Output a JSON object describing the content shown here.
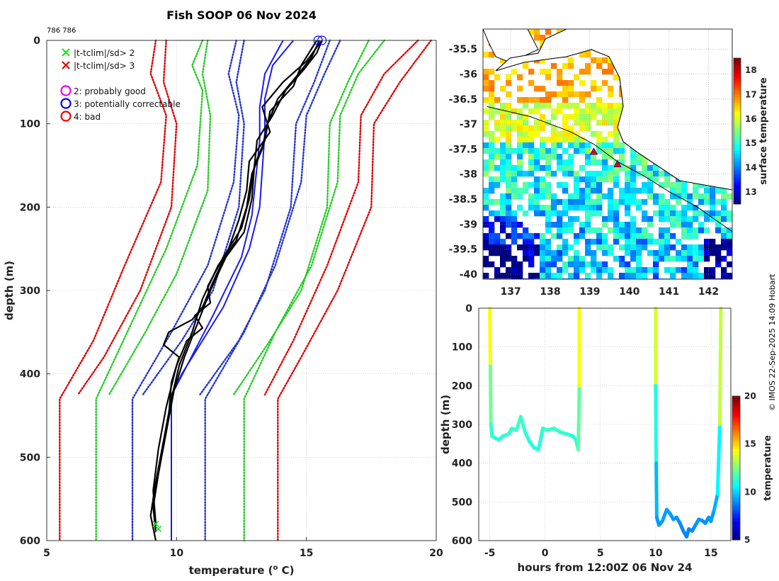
{
  "title": "Fish SOOP 06 Nov 2024",
  "id_label": "786 786",
  "credit": "© IMOS 22-Sep-2025 14:09 Hobart",
  "chart_data": [
    {
      "type": "line",
      "name": "profile",
      "xlabel": "temperature (",
      "xlabel_sup": "o",
      "xlabel_tail": " C)",
      "ylabel": "depth (m)",
      "xlim": [
        5,
        20
      ],
      "ylim": [
        0,
        600
      ],
      "xticks": [
        "5",
        "10",
        "15",
        "20"
      ],
      "yticks": [
        "0",
        "100",
        "200",
        "300",
        "400",
        "500",
        "600"
      ],
      "legend": {
        "markers": [
          {
            "label": "|t-tclim|/sd> 2",
            "color": "#22dd22",
            "symbol": "x"
          },
          {
            "label": "|t-tclim|/sd> 3",
            "color": "#ee0000",
            "symbol": "x"
          }
        ],
        "flags": [
          {
            "label": "2: probably good",
            "color": "#ee00ee"
          },
          {
            "label": "3: potentially correctable",
            "color": "#0000ee"
          },
          {
            "label": "4: bad",
            "color": "#ee0000"
          }
        ]
      },
      "envelopes": [
        {
          "name": "red-left",
          "color": "#dd0000",
          "dotted": true,
          "depth": [
            0,
            40,
            90,
            170,
            270,
            360,
            430,
            600
          ],
          "temp": [
            9.2,
            9.0,
            9.6,
            9.4,
            8.0,
            6.8,
            5.5,
            5.5
          ]
        },
        {
          "name": "red-left-2",
          "color": "#dd0000",
          "dotted": true,
          "depth": [
            0,
            50,
            100,
            200,
            300,
            380,
            425
          ],
          "temp": [
            9.6,
            9.5,
            10.0,
            9.8,
            8.6,
            7.2,
            6.2
          ]
        },
        {
          "name": "green-left",
          "color": "#22cc22",
          "dotted": true,
          "depth": [
            0,
            30,
            60,
            150,
            250,
            330,
            430,
            600
          ],
          "temp": [
            11.0,
            10.6,
            11.0,
            10.8,
            9.6,
            8.4,
            6.9,
            6.9
          ]
        },
        {
          "name": "green-left-2",
          "color": "#22cc22",
          "dotted": true,
          "depth": [
            0,
            40,
            90,
            180,
            280,
            350,
            425
          ],
          "temp": [
            11.2,
            11.0,
            11.3,
            11.2,
            10.0,
            8.8,
            7.4
          ]
        },
        {
          "name": "blue-left",
          "color": "#2233cc",
          "dotted": true,
          "depth": [
            0,
            40,
            90,
            170,
            270,
            350,
            430,
            600
          ],
          "temp": [
            12.3,
            12.0,
            12.4,
            12.2,
            11.2,
            9.8,
            8.3,
            8.3
          ]
        },
        {
          "name": "blue-left-2",
          "color": "#2233cc",
          "dotted": true,
          "depth": [
            0,
            50,
            100,
            200,
            300,
            360,
            425
          ],
          "temp": [
            12.6,
            12.3,
            12.6,
            12.4,
            11.4,
            10.2,
            8.7
          ]
        },
        {
          "name": "blue-right",
          "color": "#2233cc",
          "dotted": true,
          "depth": [
            0,
            40,
            90,
            170,
            270,
            350,
            430,
            600
          ],
          "temp": [
            16.3,
            15.7,
            15.0,
            14.8,
            13.8,
            12.6,
            11.1,
            11.1
          ]
        },
        {
          "name": "blue-right-2",
          "color": "#2233cc",
          "dotted": true,
          "depth": [
            0,
            50,
            100,
            200,
            300,
            360,
            425
          ],
          "temp": [
            15.9,
            15.3,
            14.6,
            14.4,
            13.4,
            12.4,
            10.9
          ]
        },
        {
          "name": "green-right",
          "color": "#22cc22",
          "dotted": true,
          "depth": [
            0,
            40,
            90,
            170,
            270,
            350,
            430,
            600
          ],
          "temp": [
            18.0,
            17.0,
            16.3,
            16.2,
            15.2,
            13.8,
            12.6,
            12.6
          ]
        },
        {
          "name": "green-right-2",
          "color": "#22cc22",
          "dotted": true,
          "depth": [
            0,
            50,
            100,
            200,
            300,
            360,
            425
          ],
          "temp": [
            17.4,
            16.6,
            15.9,
            15.8,
            14.8,
            13.6,
            12.2
          ]
        },
        {
          "name": "red-right",
          "color": "#dd0000",
          "dotted": true,
          "depth": [
            0,
            50,
            100,
            200,
            300,
            380,
            430,
            600
          ],
          "temp": [
            19.8,
            18.6,
            17.6,
            17.5,
            16.2,
            14.8,
            13.9,
            13.9
          ]
        },
        {
          "name": "red-right-2",
          "color": "#dd0000",
          "dotted": true,
          "depth": [
            0,
            40,
            90,
            170,
            270,
            360,
            425
          ],
          "temp": [
            19.3,
            18.0,
            17.1,
            17.0,
            15.8,
            14.5,
            13.4
          ]
        }
      ],
      "series": [
        {
          "name": "climatology-1",
          "color": "#1a1aee",
          "width": 2,
          "depth": [
            0,
            30,
            70,
            110,
            200,
            250,
            320,
            400,
            425,
            600
          ],
          "temp": [
            14.5,
            13.7,
            13.4,
            13.4,
            13.2,
            12.8,
            11.8,
            10.2,
            9.8,
            9.8
          ]
        },
        {
          "name": "climatology-2",
          "color": "#1a1aee",
          "width": 2,
          "depth": [
            0,
            40,
            80,
            120,
            210,
            260,
            330,
            420
          ],
          "temp": [
            14.1,
            13.4,
            13.2,
            13.2,
            12.9,
            12.5,
            11.4,
            9.9
          ]
        },
        {
          "name": "profile-1",
          "color": "#000000",
          "width": 2.2,
          "depth": [
            0,
            15,
            35,
            60,
            90,
            120,
            150,
            190,
            230,
            260,
            300,
            340,
            380,
            420,
            470,
            520,
            560,
            590
          ],
          "temp": [
            15.6,
            15.4,
            14.9,
            14.2,
            13.7,
            13.1,
            13.0,
            12.9,
            12.6,
            11.9,
            11.3,
            10.8,
            10.3,
            9.9,
            9.6,
            9.3,
            9.1,
            9.2
          ]
        },
        {
          "name": "profile-2",
          "color": "#000000",
          "width": 2.2,
          "depth": [
            0,
            20,
            40,
            70,
            100,
            130,
            160,
            200,
            240,
            270,
            310,
            350,
            390,
            430,
            480,
            530,
            570,
            600
          ],
          "temp": [
            15.5,
            15.2,
            14.7,
            13.9,
            13.5,
            13.3,
            12.9,
            12.7,
            12.3,
            11.6,
            11.0,
            10.6,
            10.1,
            9.8,
            9.5,
            9.2,
            9.0,
            9.2
          ]
        },
        {
          "name": "profile-3",
          "color": "#000000",
          "width": 2.2,
          "depth": [
            0,
            25,
            50,
            80,
            110,
            145,
            180,
            215,
            250,
            290,
            320,
            335,
            350,
            365,
            380,
            410,
            450,
            500,
            550,
            585
          ],
          "temp": [
            15.6,
            15.0,
            14.1,
            13.3,
            13.6,
            12.8,
            12.7,
            12.4,
            12.0,
            11.4,
            11.0,
            10.6,
            9.7,
            9.5,
            10.1,
            9.8,
            9.7,
            9.4,
            9.1,
            9.2
          ]
        },
        {
          "name": "profile-4",
          "color": "#000000",
          "width": 2.2,
          "depth": [
            0,
            30,
            55,
            85,
            120,
            150,
            190,
            225,
            260,
            295,
            315,
            330,
            345,
            360,
            390,
            440,
            490,
            540,
            580
          ],
          "temp": [
            15.4,
            14.8,
            14.5,
            13.6,
            13.4,
            13.0,
            12.8,
            12.5,
            11.8,
            11.2,
            11.3,
            10.7,
            11.0,
            10.4,
            10.0,
            9.6,
            9.3,
            9.1,
            9.2
          ]
        }
      ],
      "flag_markers": [
        {
          "type": "circle",
          "color": "#0000ee",
          "temp": 15.45,
          "depth": 0
        },
        {
          "type": "circle",
          "color": "#0000ee",
          "temp": 15.6,
          "depth": 0
        },
        {
          "type": "x",
          "color": "#22dd22",
          "temp": 9.2,
          "depth": 580
        },
        {
          "type": "x",
          "color": "#22dd22",
          "temp": 9.3,
          "depth": 586
        }
      ]
    },
    {
      "type": "heatmap",
      "name": "sst-map",
      "colorbar_label": "surface temperature",
      "xlim": [
        136.3,
        142.6
      ],
      "ylim": [
        -40.1,
        -35.1
      ],
      "xticks": [
        "137",
        "138",
        "139",
        "140",
        "141",
        "142"
      ],
      "yticks": [
        "-35.5",
        "-36",
        "-36.5",
        "-37",
        "-37.5",
        "-38",
        "-38.5",
        "-39",
        "-39.5",
        "-40"
      ],
      "color_range": [
        12.5,
        18.5
      ],
      "colorbar_ticks": [
        "13",
        "14",
        "15",
        "16",
        "17",
        "18"
      ],
      "track": {
        "lon": [
          136.4,
          137.5,
          138.5,
          139.1,
          139.7,
          140.4,
          141.0,
          141.7,
          142.6
        ],
        "lat": [
          -36.65,
          -36.85,
          -37.15,
          -37.4,
          -37.75,
          -38.05,
          -38.35,
          -38.65,
          -39.15
        ]
      },
      "drops": [
        {
          "lon": 139.1,
          "lat": -37.55
        },
        {
          "lon": 139.7,
          "lat": -37.8
        }
      ]
    },
    {
      "type": "scatter",
      "name": "time-depth",
      "xlabel": "hours from 12:00Z 06 Nov 24",
      "ylabel": "depth (m)",
      "colorbar_label": "temperature",
      "xlim": [
        -6,
        16.8
      ],
      "ylim": [
        0,
        600
      ],
      "xticks": [
        "-5",
        "0",
        "5",
        "10",
        "15"
      ],
      "yticks": [
        "0",
        "100",
        "200",
        "300",
        "400",
        "500",
        "600"
      ],
      "color_range": [
        5,
        20
      ],
      "colorbar_ticks": [
        "5",
        "10",
        "15",
        "20"
      ],
      "series": [
        {
          "name": "segment-1",
          "hours": [
            -5.0,
            -4.95,
            -4.9,
            -4.8,
            -4.5,
            -4.2,
            -3.8,
            -3.3,
            -3.0,
            -2.6,
            -2.2,
            -1.8,
            -1.4,
            -1.0,
            -0.6,
            -0.2,
            0.2,
            0.8,
            1.4,
            2.0,
            2.5,
            2.8,
            3.0,
            3.1,
            3.1
          ],
          "depth": [
            0,
            150,
            300,
            330,
            335,
            340,
            330,
            325,
            310,
            315,
            280,
            320,
            345,
            360,
            365,
            310,
            315,
            310,
            320,
            325,
            330,
            340,
            365,
            200,
            0
          ],
          "temp": [
            15.5,
            13,
            11.5,
            11.2,
            11.2,
            11.1,
            11.2,
            11.3,
            11.4,
            11.4,
            11.6,
            11.3,
            11.1,
            11,
            11,
            11.4,
            11.4,
            11.4,
            11.3,
            11.3,
            11.2,
            11.1,
            11,
            13,
            15.5
          ]
        },
        {
          "name": "segment-2",
          "hours": [
            10.0,
            10.0,
            10.05,
            10.1,
            10.3,
            10.6,
            11.0,
            11.3,
            11.6,
            11.9,
            12.2,
            12.5,
            12.8,
            13.0,
            13.3,
            13.6,
            13.9,
            14.2,
            14.5,
            14.8,
            15.0,
            15.3,
            15.6,
            15.8,
            15.9
          ],
          "depth": [
            0,
            200,
            400,
            540,
            560,
            550,
            520,
            530,
            545,
            540,
            555,
            575,
            590,
            570,
            575,
            560,
            545,
            548,
            555,
            540,
            550,
            520,
            480,
            300,
            0
          ],
          "temp": [
            15.5,
            12,
            10,
            9.2,
            9.1,
            9.1,
            9.3,
            9.2,
            9.1,
            9.1,
            9.0,
            8.9,
            8.8,
            8.9,
            8.9,
            9.0,
            9.1,
            9.1,
            9.0,
            9.1,
            9.1,
            9.3,
            9.6,
            11.5,
            15.5
          ]
        }
      ]
    }
  ]
}
